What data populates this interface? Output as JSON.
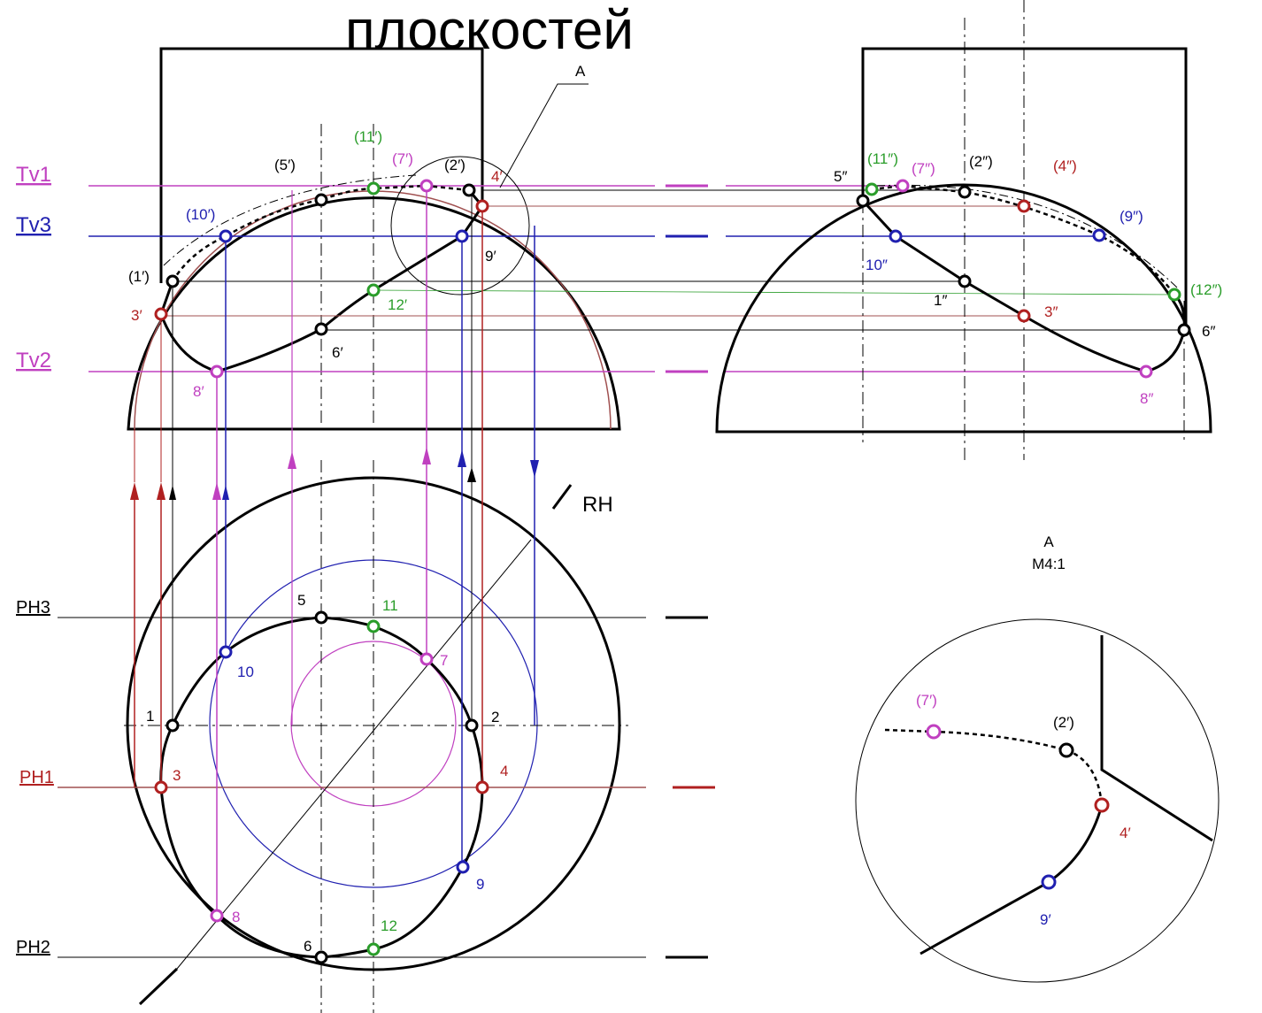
{
  "title": "плоскостей",
  "section_label": "A",
  "planes": [
    "Tv1",
    "Tv3",
    "Tv2",
    "PH3",
    "PH1",
    "PH2",
    "RH"
  ],
  "front_view": [
    "(11′)",
    "(5′)",
    "(7′)",
    "(2′)",
    "4′",
    "(10′)",
    "9′",
    "(1′)",
    "12′",
    "3′",
    "6′",
    "8′"
  ],
  "side_view": [
    "5″",
    "(11″)",
    "(7″)",
    "(2″)",
    "(4″)",
    "(9″)",
    "10″",
    "1″",
    "3″",
    "(12″)",
    "6″",
    "8″"
  ],
  "top_view": [
    "5",
    "11",
    "7",
    "10",
    "1",
    "2",
    "3",
    "4",
    "9",
    "8",
    "12",
    "6"
  ],
  "detail": {
    "title": "A",
    "scale": "M4:1",
    "labels": [
      "(7′)",
      "(2′)",
      "4′",
      "9′"
    ]
  }
}
